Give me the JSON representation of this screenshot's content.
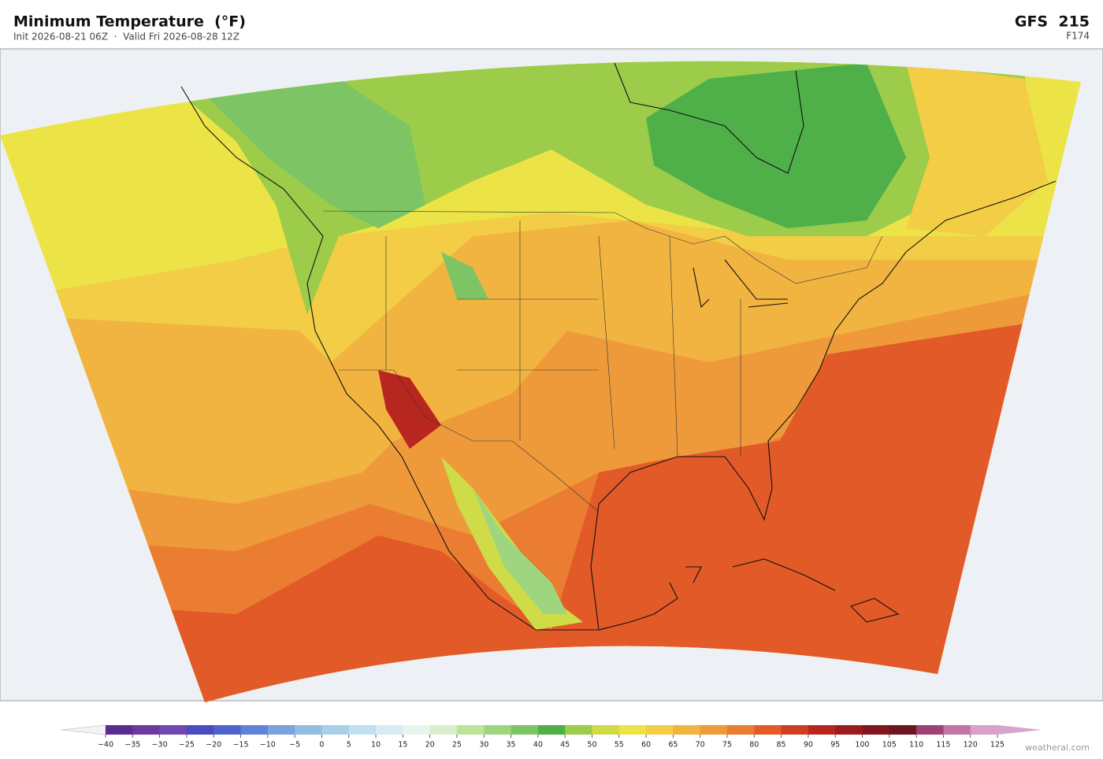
{
  "header": {
    "title": "Minimum Temperature  (°F)",
    "subtitle": "Init 2026-08-21 06Z  ·  Valid Fri 2026-08-28 12Z",
    "model": "GFS  215",
    "forecast_hour": "F174"
  },
  "colorbar": {
    "ticks": [
      {
        "value": -40,
        "label": "−40"
      },
      {
        "value": -35,
        "label": "−35"
      },
      {
        "value": -30,
        "label": "−30"
      },
      {
        "value": -25,
        "label": "−25"
      },
      {
        "value": -20,
        "label": "−20"
      },
      {
        "value": -15,
        "label": "−15"
      },
      {
        "value": -10,
        "label": "−10"
      },
      {
        "value": -5,
        "label": "−5"
      },
      0,
      5,
      10,
      15,
      20,
      25,
      30,
      35,
      40,
      45,
      50,
      55,
      60,
      65,
      70,
      75,
      80,
      85,
      90,
      95,
      100,
      105,
      110,
      115,
      120,
      125
    ],
    "colors": [
      "#5b2c8f",
      "#6a3a9e",
      "#7149b0",
      "#4a4cc0",
      "#4e64cc",
      "#6183d6",
      "#7aa3dc",
      "#94bde3",
      "#a9d0e8",
      "#bfe0ee",
      "#d6ecf0",
      "#e8f4ee",
      "#d8eecc",
      "#bce39a",
      "#9fd57e",
      "#7cc464",
      "#4fb04a",
      "#9ccc4a",
      "#cfdc48",
      "#ece447",
      "#f2cd45",
      "#f2b440",
      "#ef9a3a",
      "#eb7d32",
      "#e25a28",
      "#cf3d22",
      "#b82620",
      "#9c1b1e",
      "#84171d",
      "#6d1520",
      "#9c4374",
      "#c176a6",
      "#d9a0c8"
    ],
    "extend_colors": [
      "#f4f4f4",
      "#d7a3cf"
    ]
  },
  "credit": "weatherai.com"
}
